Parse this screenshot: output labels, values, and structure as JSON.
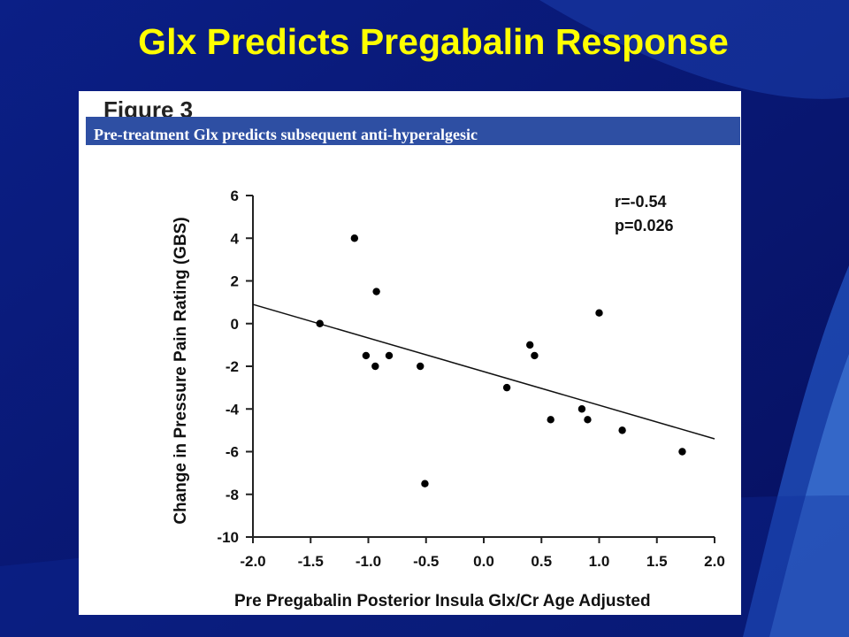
{
  "slide": {
    "title": "Glx Predicts Pregabalin Response",
    "figure_label": "Figure 3",
    "caption": "Pre-treatment Glx predicts subsequent anti-hyperalgesic"
  },
  "colors": {
    "background": "#0a1a6e",
    "title": "#ffff00",
    "caption_band": "#2e4fa3",
    "points": "#000000"
  },
  "chart_data": {
    "type": "scatter",
    "xlabel": "Pre Pregabalin Posterior Insula Glx/Cr Age Adjusted",
    "ylabel": "Change in Pressure Pain Rating (GBS)",
    "xlim": [
      -2.0,
      2.0
    ],
    "ylim": [
      -10,
      6
    ],
    "x_ticks": [
      "-2.0",
      "-1.5",
      "-1.0",
      "-0.5",
      "0.0",
      "0.5",
      "1.0",
      "1.5",
      "2.0"
    ],
    "y_ticks": [
      "6",
      "4",
      "2",
      "0",
      "-2",
      "-4",
      "-6",
      "-8",
      "-10"
    ],
    "grid": false,
    "points": [
      {
        "x": -1.42,
        "y": 0.0
      },
      {
        "x": -1.12,
        "y": 4.0
      },
      {
        "x": -1.02,
        "y": -1.5
      },
      {
        "x": -0.94,
        "y": -2.0
      },
      {
        "x": -0.93,
        "y": 1.5
      },
      {
        "x": -0.82,
        "y": -1.5
      },
      {
        "x": -0.55,
        "y": -2.0
      },
      {
        "x": -0.51,
        "y": -7.5
      },
      {
        "x": 0.2,
        "y": -3.0
      },
      {
        "x": 0.4,
        "y": -1.0
      },
      {
        "x": 0.44,
        "y": -1.5
      },
      {
        "x": 0.58,
        "y": -4.5
      },
      {
        "x": 0.85,
        "y": -4.0
      },
      {
        "x": 0.9,
        "y": -4.5
      },
      {
        "x": 1.0,
        "y": 0.5
      },
      {
        "x": 1.2,
        "y": -5.0
      },
      {
        "x": 1.72,
        "y": -6.0
      }
    ],
    "regression_line": {
      "x": [
        -2.0,
        2.0
      ],
      "y": [
        0.9,
        -5.4
      ]
    },
    "annotations": [
      "r=-0.54",
      "p=0.026"
    ]
  }
}
